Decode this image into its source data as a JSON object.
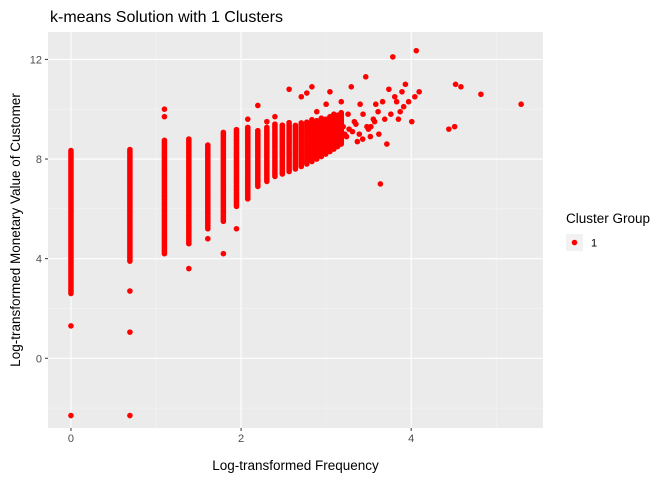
{
  "chart_data": {
    "type": "scatter",
    "title": "k-means Solution with 1 Clusters",
    "xlabel": "Log-transformed Frequency",
    "ylabel": "Log-transformed Monetary Value of Customer",
    "xlim": [
      -0.27,
      5.55
    ],
    "ylim": [
      -2.8,
      13.1
    ],
    "x_ticks": [
      0,
      2,
      4
    ],
    "x_tick_labels": [
      "0",
      "2",
      "4"
    ],
    "y_ticks": [
      0,
      4,
      8,
      12
    ],
    "y_tick_labels": [
      "0",
      "4",
      "8",
      "12"
    ],
    "grid": true,
    "legend": {
      "title": "Cluster Group",
      "position": "right",
      "entries": [
        {
          "label": "1",
          "color": "#ff0000"
        }
      ]
    },
    "colors": {
      "panel": "#ebebeb",
      "grid_major": "#ffffff",
      "grid_minor": "#f4f4f4",
      "point": "#ff0000"
    },
    "columns": [
      {
        "x": 0,
        "ymin": 2.6,
        "ymax": 8.35
      },
      {
        "x": 0.693,
        "ymin": 3.9,
        "ymax": 8.4
      },
      {
        "x": 1.099,
        "ymin": 4.2,
        "ymax": 8.8
      },
      {
        "x": 1.386,
        "ymin": 4.6,
        "ymax": 8.8
      },
      {
        "x": 1.609,
        "ymin": 5.2,
        "ymax": 8.6
      },
      {
        "x": 1.792,
        "ymin": 5.5,
        "ymax": 9.1
      },
      {
        "x": 1.946,
        "ymin": 6.1,
        "ymax": 9.2
      },
      {
        "x": 2.079,
        "ymin": 6.4,
        "ymax": 9.3
      },
      {
        "x": 2.197,
        "ymin": 6.9,
        "ymax": 9.2
      },
      {
        "x": 2.303,
        "ymin": 7.1,
        "ymax": 9.3
      },
      {
        "x": 2.398,
        "ymin": 7.3,
        "ymax": 9.4
      },
      {
        "x": 2.485,
        "ymin": 7.4,
        "ymax": 9.4
      },
      {
        "x": 2.565,
        "ymin": 7.5,
        "ymax": 9.5
      },
      {
        "x": 2.639,
        "ymin": 7.6,
        "ymax": 9.4
      },
      {
        "x": 2.708,
        "ymin": 7.7,
        "ymax": 9.5
      },
      {
        "x": 2.773,
        "ymin": 7.8,
        "ymax": 9.5
      },
      {
        "x": 2.833,
        "ymin": 7.9,
        "ymax": 9.6
      },
      {
        "x": 2.89,
        "ymin": 8.0,
        "ymax": 9.6
      },
      {
        "x": 2.944,
        "ymin": 8.1,
        "ymax": 9.7
      },
      {
        "x": 2.996,
        "ymin": 8.2,
        "ymax": 9.6
      },
      {
        "x": 3.045,
        "ymin": 8.3,
        "ymax": 9.7
      },
      {
        "x": 3.091,
        "ymin": 8.4,
        "ymax": 9.8
      },
      {
        "x": 3.135,
        "ymin": 8.5,
        "ymax": 9.8
      },
      {
        "x": 3.178,
        "ymin": 8.6,
        "ymax": 9.9
      }
    ],
    "points": [
      [
        0,
        1.3
      ],
      [
        0,
        -2.3
      ],
      [
        0.693,
        2.7
      ],
      [
        0.693,
        1.05
      ],
      [
        0.693,
        -2.3
      ],
      [
        1.099,
        10.0
      ],
      [
        1.099,
        9.7
      ],
      [
        1.386,
        3.6
      ],
      [
        1.609,
        4.8
      ],
      [
        1.792,
        4.2
      ],
      [
        1.946,
        5.2
      ],
      [
        2.079,
        9.6
      ],
      [
        2.197,
        10.15
      ],
      [
        2.303,
        9.5
      ],
      [
        2.398,
        9.7
      ],
      [
        2.565,
        10.8
      ],
      [
        2.708,
        10.5
      ],
      [
        2.773,
        10.65
      ],
      [
        2.833,
        10.9
      ],
      [
        2.89,
        9.9
      ],
      [
        3.0,
        10.2
      ],
      [
        3.045,
        10.7
      ],
      [
        3.178,
        10.3
      ],
      [
        3.219,
        9.0
      ],
      [
        3.258,
        9.8
      ],
      [
        3.296,
        10.9
      ],
      [
        3.332,
        9.5
      ],
      [
        3.367,
        8.7
      ],
      [
        3.4,
        10.2
      ],
      [
        3.434,
        9.8
      ],
      [
        3.466,
        11.3
      ],
      [
        3.497,
        9.2
      ],
      [
        3.526,
        9.3
      ],
      [
        3.555,
        9.6
      ],
      [
        3.584,
        10.2
      ],
      [
        3.611,
        9.9
      ],
      [
        3.638,
        7.0
      ],
      [
        3.664,
        10.3
      ],
      [
        3.689,
        9.6
      ],
      [
        3.714,
        8.6
      ],
      [
        3.738,
        10.8
      ],
      [
        3.761,
        9.8
      ],
      [
        3.784,
        12.1
      ],
      [
        3.807,
        10.5
      ],
      [
        3.829,
        10.3
      ],
      [
        3.85,
        9.6
      ],
      [
        3.871,
        9.9
      ],
      [
        3.892,
        10.7
      ],
      [
        3.912,
        10.1
      ],
      [
        3.932,
        11.0
      ],
      [
        3.97,
        10.3
      ],
      [
        4.007,
        9.5
      ],
      [
        4.043,
        10.5
      ],
      [
        4.06,
        12.35
      ],
      [
        4.094,
        10.7
      ],
      [
        4.443,
        9.2
      ],
      [
        4.511,
        9.3
      ],
      [
        4.522,
        11.0
      ],
      [
        4.585,
        10.9
      ],
      [
        4.82,
        10.6
      ],
      [
        5.293,
        10.2
      ],
      [
        3.02,
        9.1
      ],
      [
        3.07,
        8.9
      ],
      [
        3.12,
        9.0
      ],
      [
        3.15,
        8.8
      ],
      [
        3.2,
        9.3
      ],
      [
        3.24,
        8.9
      ],
      [
        3.27,
        9.2
      ],
      [
        3.31,
        9.1
      ],
      [
        3.35,
        9.4
      ],
      [
        3.39,
        9.0
      ],
      [
        3.43,
        8.8
      ],
      [
        3.48,
        9.3
      ],
      [
        3.52,
        8.9
      ],
      [
        3.57,
        9.5
      ],
      [
        3.62,
        9.0
      ]
    ]
  }
}
